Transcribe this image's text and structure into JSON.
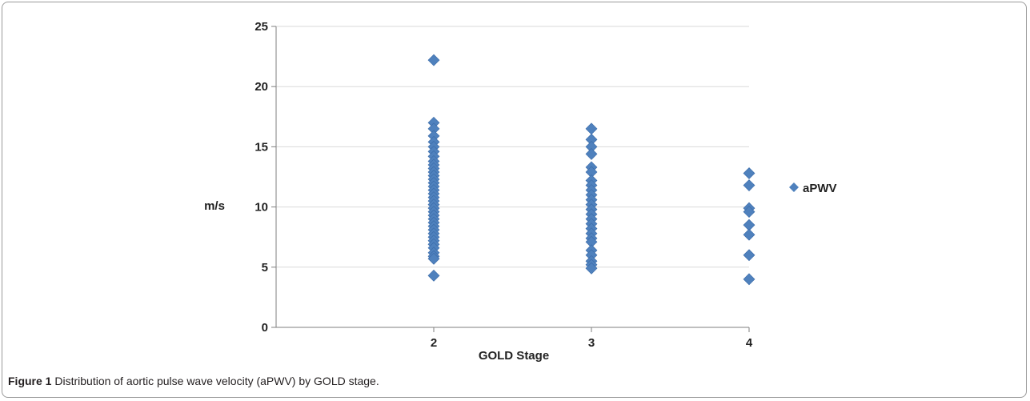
{
  "chart_data": {
    "type": "scatter",
    "title": "",
    "xlabel": "GOLD Stage",
    "ylabel": "m/s",
    "xlim": [
      1,
      4
    ],
    "ylim": [
      0,
      25
    ],
    "xticks": [
      2,
      3,
      4
    ],
    "yticks": [
      0,
      5,
      10,
      15,
      20,
      25
    ],
    "grid": true,
    "legend": "right",
    "color": "#4f81bd",
    "series": [
      {
        "name": "aPWV",
        "points": [
          [
            2,
            22.2
          ],
          [
            2,
            17.0
          ],
          [
            2,
            16.5
          ],
          [
            2,
            15.9
          ],
          [
            2,
            15.4
          ],
          [
            2,
            15.0
          ],
          [
            2,
            14.6
          ],
          [
            2,
            14.2
          ],
          [
            2,
            13.8
          ],
          [
            2,
            13.5
          ],
          [
            2,
            13.2
          ],
          [
            2,
            12.9
          ],
          [
            2,
            12.6
          ],
          [
            2,
            12.3
          ],
          [
            2,
            12.0
          ],
          [
            2,
            11.7
          ],
          [
            2,
            11.4
          ],
          [
            2,
            11.1
          ],
          [
            2,
            10.8
          ],
          [
            2,
            10.5
          ],
          [
            2,
            10.2
          ],
          [
            2,
            9.9
          ],
          [
            2,
            9.6
          ],
          [
            2,
            9.3
          ],
          [
            2,
            9.0
          ],
          [
            2,
            8.7
          ],
          [
            2,
            8.4
          ],
          [
            2,
            8.1
          ],
          [
            2,
            7.8
          ],
          [
            2,
            7.5
          ],
          [
            2,
            7.2
          ],
          [
            2,
            6.9
          ],
          [
            2,
            6.6
          ],
          [
            2,
            6.2
          ],
          [
            2,
            5.9
          ],
          [
            2,
            5.7
          ],
          [
            2,
            4.3
          ],
          [
            3,
            16.5
          ],
          [
            3,
            15.6
          ],
          [
            3,
            15.0
          ],
          [
            3,
            14.4
          ],
          [
            3,
            13.3
          ],
          [
            3,
            12.9
          ],
          [
            3,
            12.2
          ],
          [
            3,
            11.8
          ],
          [
            3,
            11.4
          ],
          [
            3,
            11.0
          ],
          [
            3,
            10.6
          ],
          [
            3,
            10.2
          ],
          [
            3,
            9.8
          ],
          [
            3,
            9.4
          ],
          [
            3,
            9.0
          ],
          [
            3,
            8.6
          ],
          [
            3,
            8.2
          ],
          [
            3,
            7.8
          ],
          [
            3,
            7.4
          ],
          [
            3,
            7.1
          ],
          [
            3,
            6.4
          ],
          [
            3,
            6.0
          ],
          [
            3,
            5.5
          ],
          [
            3,
            5.2
          ],
          [
            3,
            4.9
          ],
          [
            4,
            12.8
          ],
          [
            4,
            11.8
          ],
          [
            4,
            9.9
          ],
          [
            4,
            9.6
          ],
          [
            4,
            8.5
          ],
          [
            4,
            7.7
          ],
          [
            4,
            6.0
          ],
          [
            4,
            4.0
          ]
        ]
      }
    ]
  },
  "caption": {
    "label": "Figure 1",
    "text": " Distribution of aortic pulse wave velocity (aPWV) by GOLD stage."
  }
}
